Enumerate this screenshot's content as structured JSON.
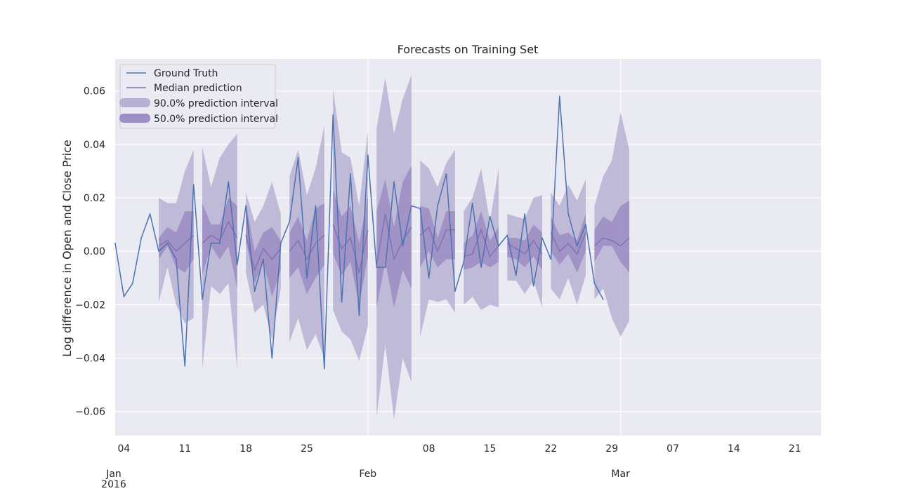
{
  "chart_data": {
    "type": "line",
    "title": "Forecasts on Training Set",
    "xlabel": "",
    "ylabel": "Log difference in Open and Close Price",
    "x_start": "2016-01-03",
    "x_end": "2016-03-24",
    "ylim": [
      -0.069,
      0.072
    ],
    "yticks": [
      -0.06,
      -0.04,
      -0.02,
      0.0,
      0.02,
      0.04,
      0.06
    ],
    "ytick_labels": [
      "−0.06",
      "−0.04",
      "−0.02",
      "0.00",
      "0.02",
      "0.04",
      "0.06"
    ],
    "xticks": [
      {
        "date": "2016-01-04",
        "label": "04"
      },
      {
        "date": "2016-01-11",
        "label": "11"
      },
      {
        "date": "2016-01-18",
        "label": "18"
      },
      {
        "date": "2016-01-25",
        "label": "25"
      },
      {
        "date": "2016-02-08",
        "label": "08"
      },
      {
        "date": "2016-02-15",
        "label": "15"
      },
      {
        "date": "2016-02-22",
        "label": "22"
      },
      {
        "date": "2016-02-29",
        "label": "29"
      },
      {
        "date": "2016-03-07",
        "label": "07"
      },
      {
        "date": "2016-03-14",
        "label": "14"
      },
      {
        "date": "2016-03-21",
        "label": "21"
      }
    ],
    "xticks_major": [
      {
        "date": "2016-01-01",
        "label": "Jan",
        "sublabel": "2016"
      },
      {
        "date": "2016-02-01",
        "label": "Feb",
        "sublabel": ""
      },
      {
        "date": "2016-03-01",
        "label": "Mar",
        "sublabel": ""
      }
    ],
    "grid": true,
    "legend_position": "top-left",
    "legend": [
      "Ground Truth",
      "Median prediction",
      "90.0% prediction interval",
      "50.0% prediction interval"
    ],
    "colors": {
      "background": "#eaeaf2",
      "grid": "#ffffff",
      "ground_truth": "#4c72b0",
      "median": "#8172b3",
      "band90": "#b7b2d4",
      "band50": "#9d8fc4"
    },
    "ground_truth": [
      [
        "2016-01-03",
        0.003
      ],
      [
        "2016-01-04",
        -0.017
      ],
      [
        "2016-01-05",
        -0.012
      ],
      [
        "2016-01-06",
        0.005
      ],
      [
        "2016-01-07",
        0.014
      ],
      [
        "2016-01-08",
        0.0
      ],
      [
        "2016-01-09",
        0.003
      ],
      [
        "2016-01-10",
        -0.003
      ],
      [
        "2016-01-11",
        -0.043
      ],
      [
        "2016-01-12",
        0.025
      ],
      [
        "2016-01-13",
        -0.018
      ],
      [
        "2016-01-14",
        0.003
      ],
      [
        "2016-01-15",
        0.003
      ],
      [
        "2016-01-16",
        0.026
      ],
      [
        "2016-01-17",
        -0.005
      ],
      [
        "2016-01-18",
        0.017
      ],
      [
        "2016-01-19",
        -0.015
      ],
      [
        "2016-01-20",
        -0.003
      ],
      [
        "2016-01-21",
        -0.04
      ],
      [
        "2016-01-22",
        0.003
      ],
      [
        "2016-01-23",
        0.011
      ],
      [
        "2016-01-24",
        0.035
      ],
      [
        "2016-01-25",
        -0.01
      ],
      [
        "2016-01-26",
        0.017
      ],
      [
        "2016-01-27",
        -0.044
      ],
      [
        "2016-01-28",
        0.051
      ],
      [
        "2016-01-29",
        -0.019
      ],
      [
        "2016-01-30",
        0.029
      ],
      [
        "2016-01-31",
        -0.024
      ],
      [
        "2016-02-01",
        0.036
      ],
      [
        "2016-02-02",
        -0.006
      ],
      [
        "2016-02-03",
        -0.006
      ],
      [
        "2016-02-04",
        0.026
      ],
      [
        "2016-02-05",
        0.002
      ],
      [
        "2016-02-06",
        0.017
      ],
      [
        "2016-02-07",
        0.016
      ],
      [
        "2016-02-08",
        -0.01
      ],
      [
        "2016-02-09",
        0.017
      ],
      [
        "2016-02-10",
        0.029
      ],
      [
        "2016-02-11",
        -0.015
      ],
      [
        "2016-02-12",
        -0.004
      ],
      [
        "2016-02-13",
        0.018
      ],
      [
        "2016-02-14",
        -0.006
      ],
      [
        "2016-02-15",
        0.013
      ],
      [
        "2016-02-16",
        0.002
      ],
      [
        "2016-02-17",
        0.006
      ],
      [
        "2016-02-18",
        -0.009
      ],
      [
        "2016-02-19",
        0.014
      ],
      [
        "2016-02-20",
        -0.013
      ],
      [
        "2016-02-21",
        0.005
      ],
      [
        "2016-02-22",
        -0.003
      ],
      [
        "2016-02-23",
        0.058
      ],
      [
        "2016-02-24",
        0.014
      ],
      [
        "2016-02-25",
        0.002
      ],
      [
        "2016-02-26",
        0.01
      ],
      [
        "2016-02-27",
        -0.012
      ],
      [
        "2016-02-28",
        -0.018
      ]
    ],
    "forecast": [
      {
        "x": [
          "2016-01-08",
          "2016-01-09",
          "2016-01-10",
          "2016-01-11",
          "2016-01-12"
        ],
        "median": [
          0.002,
          0.004,
          0.0,
          0.003,
          0.006
        ],
        "q25": [
          -0.003,
          0.002,
          -0.006,
          -0.008,
          -0.003
        ],
        "q75": [
          0.005,
          0.009,
          0.007,
          0.015,
          0.015
        ],
        "q05": [
          -0.019,
          -0.006,
          -0.02,
          -0.027,
          -0.025
        ],
        "q95": [
          0.02,
          0.018,
          0.018,
          0.03,
          0.038
        ]
      },
      {
        "x": [
          "2016-01-13",
          "2016-01-14",
          "2016-01-15",
          "2016-01-16",
          "2016-01-17"
        ],
        "median": [
          0.003,
          0.006,
          0.004,
          0.011,
          0.005
        ],
        "q25": [
          -0.009,
          0.002,
          -0.003,
          0.002,
          -0.014
        ],
        "q75": [
          0.018,
          0.01,
          0.01,
          0.02,
          0.017
        ],
        "q05": [
          -0.044,
          -0.013,
          -0.016,
          -0.012,
          -0.044
        ],
        "q95": [
          0.039,
          0.024,
          0.035,
          0.04,
          0.044
        ]
      },
      {
        "x": [
          "2016-01-18",
          "2016-01-19",
          "2016-01-20",
          "2016-01-21",
          "2016-01-22"
        ],
        "median": [
          0.006,
          -0.007,
          0.001,
          -0.003,
          0.001
        ],
        "q25": [
          0.004,
          -0.012,
          -0.004,
          -0.017,
          -0.007
        ],
        "q75": [
          0.018,
          0.0,
          0.007,
          0.009,
          0.004
        ],
        "q05": [
          -0.008,
          -0.023,
          -0.02,
          -0.033,
          -0.014
        ],
        "q95": [
          0.022,
          0.011,
          0.017,
          0.026,
          0.014
        ]
      },
      {
        "x": [
          "2016-01-23",
          "2016-01-24",
          "2016-01-25",
          "2016-01-26",
          "2016-01-27"
        ],
        "median": [
          0.0,
          0.004,
          -0.003,
          0.003,
          0.006
        ],
        "q25": [
          -0.01,
          -0.006,
          -0.016,
          -0.01,
          -0.005
        ],
        "q75": [
          0.007,
          0.013,
          0.004,
          0.016,
          0.018
        ],
        "q05": [
          -0.034,
          -0.025,
          -0.037,
          -0.031,
          -0.04
        ],
        "q95": [
          0.028,
          0.038,
          0.021,
          0.031,
          0.047
        ]
      },
      {
        "x": [
          "2016-01-28",
          "2016-01-29",
          "2016-01-30",
          "2016-01-31",
          "2016-02-01"
        ],
        "median": [
          0.01,
          0.001,
          0.005,
          -0.008,
          0.008
        ],
        "q25": [
          -0.001,
          -0.009,
          -0.004,
          -0.02,
          -0.002
        ],
        "q75": [
          0.023,
          0.013,
          0.017,
          0.003,
          0.021
        ],
        "q05": [
          -0.022,
          -0.03,
          -0.033,
          -0.041,
          -0.028
        ],
        "q95": [
          0.061,
          0.037,
          0.035,
          0.017,
          0.045
        ]
      },
      {
        "x": [
          "2016-02-02",
          "2016-02-03",
          "2016-02-04",
          "2016-02-05",
          "2016-02-06"
        ],
        "median": [
          -0.005,
          0.014,
          -0.003,
          0.004,
          0.009
        ],
        "q25": [
          -0.021,
          -0.004,
          -0.021,
          -0.007,
          -0.014
        ],
        "q75": [
          0.015,
          0.027,
          0.009,
          0.026,
          0.032
        ],
        "q05": [
          -0.062,
          -0.035,
          -0.063,
          -0.04,
          -0.049
        ],
        "q95": [
          0.046,
          0.065,
          0.044,
          0.057,
          0.066
        ]
      },
      {
        "x": [
          "2016-02-07",
          "2016-02-08",
          "2016-02-09",
          "2016-02-10",
          "2016-02-11"
        ],
        "median": [
          0.006,
          0.009,
          0.0,
          0.008,
          0.008
        ],
        "q25": [
          -0.006,
          0.0,
          -0.006,
          -0.003,
          -0.003
        ],
        "q75": [
          0.017,
          0.016,
          0.005,
          0.015,
          0.015
        ],
        "q05": [
          -0.032,
          -0.018,
          -0.019,
          -0.018,
          -0.023
        ],
        "q95": [
          0.034,
          0.031,
          0.024,
          0.033,
          0.038
        ]
      },
      {
        "x": [
          "2016-02-12",
          "2016-02-13",
          "2016-02-14",
          "2016-02-15",
          "2016-02-16"
        ],
        "median": [
          -0.002,
          -0.001,
          0.008,
          -0.002,
          0.002
        ],
        "q25": [
          -0.007,
          -0.006,
          -0.004,
          -0.006,
          -0.004
        ],
        "q75": [
          0.003,
          0.006,
          0.015,
          0.004,
          0.009
        ],
        "q05": [
          -0.02,
          -0.017,
          -0.022,
          -0.02,
          -0.021
        ],
        "q95": [
          0.015,
          0.02,
          0.031,
          0.011,
          0.031
        ]
      },
      {
        "x": [
          "2016-02-17",
          "2016-02-18",
          "2016-02-19",
          "2016-02-20",
          "2016-02-21"
        ],
        "median": [
          0.003,
          0.001,
          -0.001,
          0.004,
          -0.001
        ],
        "q25": [
          -0.002,
          -0.003,
          -0.006,
          -0.002,
          -0.007
        ],
        "q75": [
          0.005,
          0.005,
          0.004,
          0.01,
          0.007
        ],
        "q05": [
          -0.011,
          -0.011,
          -0.016,
          -0.011,
          -0.021
        ],
        "q95": [
          0.014,
          0.013,
          0.012,
          0.02,
          0.021
        ]
      },
      {
        "x": [
          "2016-02-22",
          "2016-02-23",
          "2016-02-24",
          "2016-02-25",
          "2016-02-26"
        ],
        "median": [
          0.007,
          0.0,
          0.003,
          -0.001,
          0.007
        ],
        "q25": [
          0.0,
          -0.005,
          -0.001,
          -0.008,
          0.0
        ],
        "q75": [
          0.013,
          0.006,
          0.007,
          0.004,
          0.014
        ],
        "q05": [
          -0.014,
          -0.018,
          -0.01,
          -0.02,
          -0.009
        ],
        "q95": [
          0.022,
          0.017,
          0.025,
          0.019,
          0.027
        ]
      },
      {
        "x": [
          "2016-02-27",
          "2016-02-28",
          "2016-02-29",
          "2016-03-01",
          "2016-03-02"
        ],
        "median": [
          0.002,
          0.005,
          0.004,
          0.002,
          0.005
        ],
        "q25": [
          -0.004,
          0.002,
          0.002,
          -0.004,
          -0.008
        ],
        "q75": [
          0.008,
          0.013,
          0.011,
          0.017,
          0.019
        ],
        "q05": [
          -0.018,
          -0.014,
          -0.025,
          -0.032,
          -0.026
        ],
        "q95": [
          0.017,
          0.028,
          0.034,
          0.052,
          0.038
        ]
      }
    ]
  }
}
